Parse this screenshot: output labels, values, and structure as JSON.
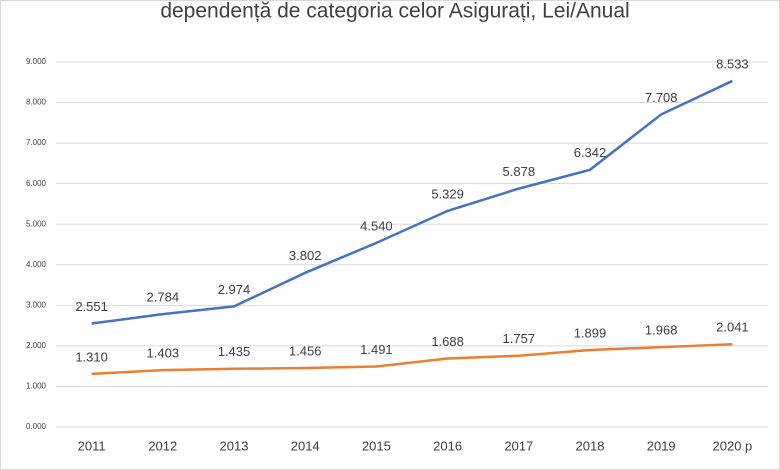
{
  "chart_data": {
    "type": "line",
    "title": "dependență de categoria celor Asigurați, Lei/Anual",
    "categories": [
      "2011",
      "2012",
      "2013",
      "2014",
      "2015",
      "2016",
      "2017",
      "2018",
      "2019",
      "2020 p"
    ],
    "series": [
      {
        "color": "#4472c4",
        "values": [
          2551,
          2784,
          2974,
          3802,
          4540,
          5329,
          5878,
          6342,
          7708,
          8533
        ],
        "value_labels": [
          "2.551",
          "2.784",
          "2.974",
          "3.802",
          "4.540",
          "5.329",
          "5.878",
          "6.342",
          "7.708",
          "8.533"
        ]
      },
      {
        "color": "#ed7d31",
        "values": [
          1310,
          1403,
          1435,
          1456,
          1491,
          1688,
          1757,
          1899,
          1968,
          2041
        ],
        "value_labels": [
          "1.310",
          "1.403",
          "1.435",
          "1.456",
          "1.491",
          "1.688",
          "1.757",
          "1.899",
          "1.968",
          "2.041"
        ]
      }
    ],
    "ylim": [
      0,
      9000
    ],
    "yticks": [
      {
        "value": 0,
        "label": "0.000"
      },
      {
        "value": 1000,
        "label": "1.000"
      },
      {
        "value": 2000,
        "label": "2.000"
      },
      {
        "value": 3000,
        "label": "3.000"
      },
      {
        "value": 4000,
        "label": "4.000"
      },
      {
        "value": 5000,
        "label": "5.000"
      },
      {
        "value": 6000,
        "label": "6.000"
      },
      {
        "value": 7000,
        "label": "7.000"
      },
      {
        "value": 8000,
        "label": "8.000"
      },
      {
        "value": 9000,
        "label": "9.000"
      }
    ],
    "grid": true
  }
}
